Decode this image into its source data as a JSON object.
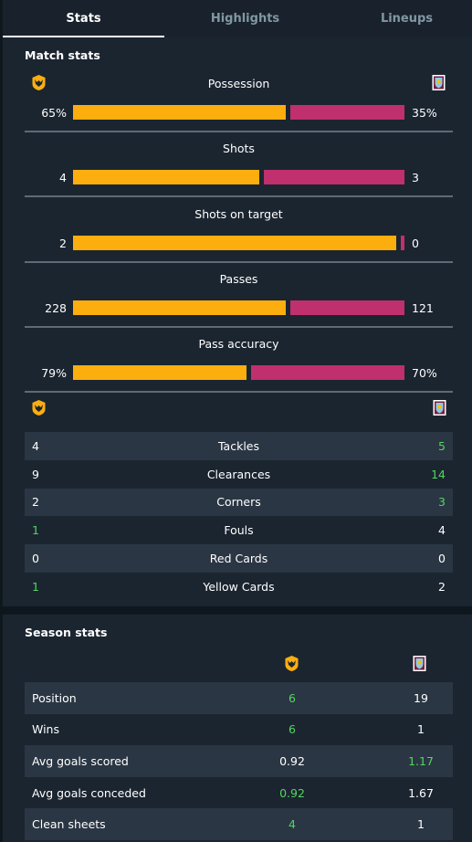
{
  "tabs": [
    {
      "label": "Stats",
      "active": true
    },
    {
      "label": "Highlights",
      "active": false
    },
    {
      "label": "Lineups",
      "active": false
    }
  ],
  "match_stats": {
    "title": "Match stats",
    "home_crest": "wolves-crest-icon",
    "away_crest": "burnley-crest-icon",
    "bars": [
      {
        "label": "Possession",
        "home": "65%",
        "away": "35%",
        "home_share": 0.65
      },
      {
        "label": "Shots",
        "home": "4",
        "away": "3",
        "home_share": 0.57
      },
      {
        "label": "Shots on target",
        "home": "2",
        "away": "0",
        "home_share": 1.0
      },
      {
        "label": "Passes",
        "home": "228",
        "away": "121",
        "home_share": 0.65
      },
      {
        "label": "Pass accuracy",
        "home": "79%",
        "away": "70%",
        "home_share": 0.53
      }
    ],
    "table": [
      {
        "label": "Tackles",
        "home": "4",
        "away": "5",
        "better": "away"
      },
      {
        "label": "Clearances",
        "home": "9",
        "away": "14",
        "better": "away"
      },
      {
        "label": "Corners",
        "home": "2",
        "away": "3",
        "better": "away"
      },
      {
        "label": "Fouls",
        "home": "1",
        "away": "4",
        "better": "home"
      },
      {
        "label": "Red Cards",
        "home": "0",
        "away": "0",
        "better": "none"
      },
      {
        "label": "Yellow Cards",
        "home": "1",
        "away": "2",
        "better": "home"
      }
    ]
  },
  "season_stats": {
    "title": "Season stats",
    "rows": [
      {
        "label": "Position",
        "home": "6",
        "away": "19",
        "better": "home"
      },
      {
        "label": "Wins",
        "home": "6",
        "away": "1",
        "better": "home"
      },
      {
        "label": "Avg goals scored",
        "home": "0.92",
        "away": "1.17",
        "better": "away"
      },
      {
        "label": "Avg goals conceded",
        "home": "0.92",
        "away": "1.67",
        "better": "home"
      },
      {
        "label": "Clean sheets",
        "home": "4",
        "away": "1",
        "better": "home"
      }
    ]
  },
  "colors": {
    "home_bar": "#fcae0f",
    "away_bar": "#c0306e",
    "better_value": "#53d55f",
    "background": "#0f171e",
    "panel": "#1b2530"
  }
}
